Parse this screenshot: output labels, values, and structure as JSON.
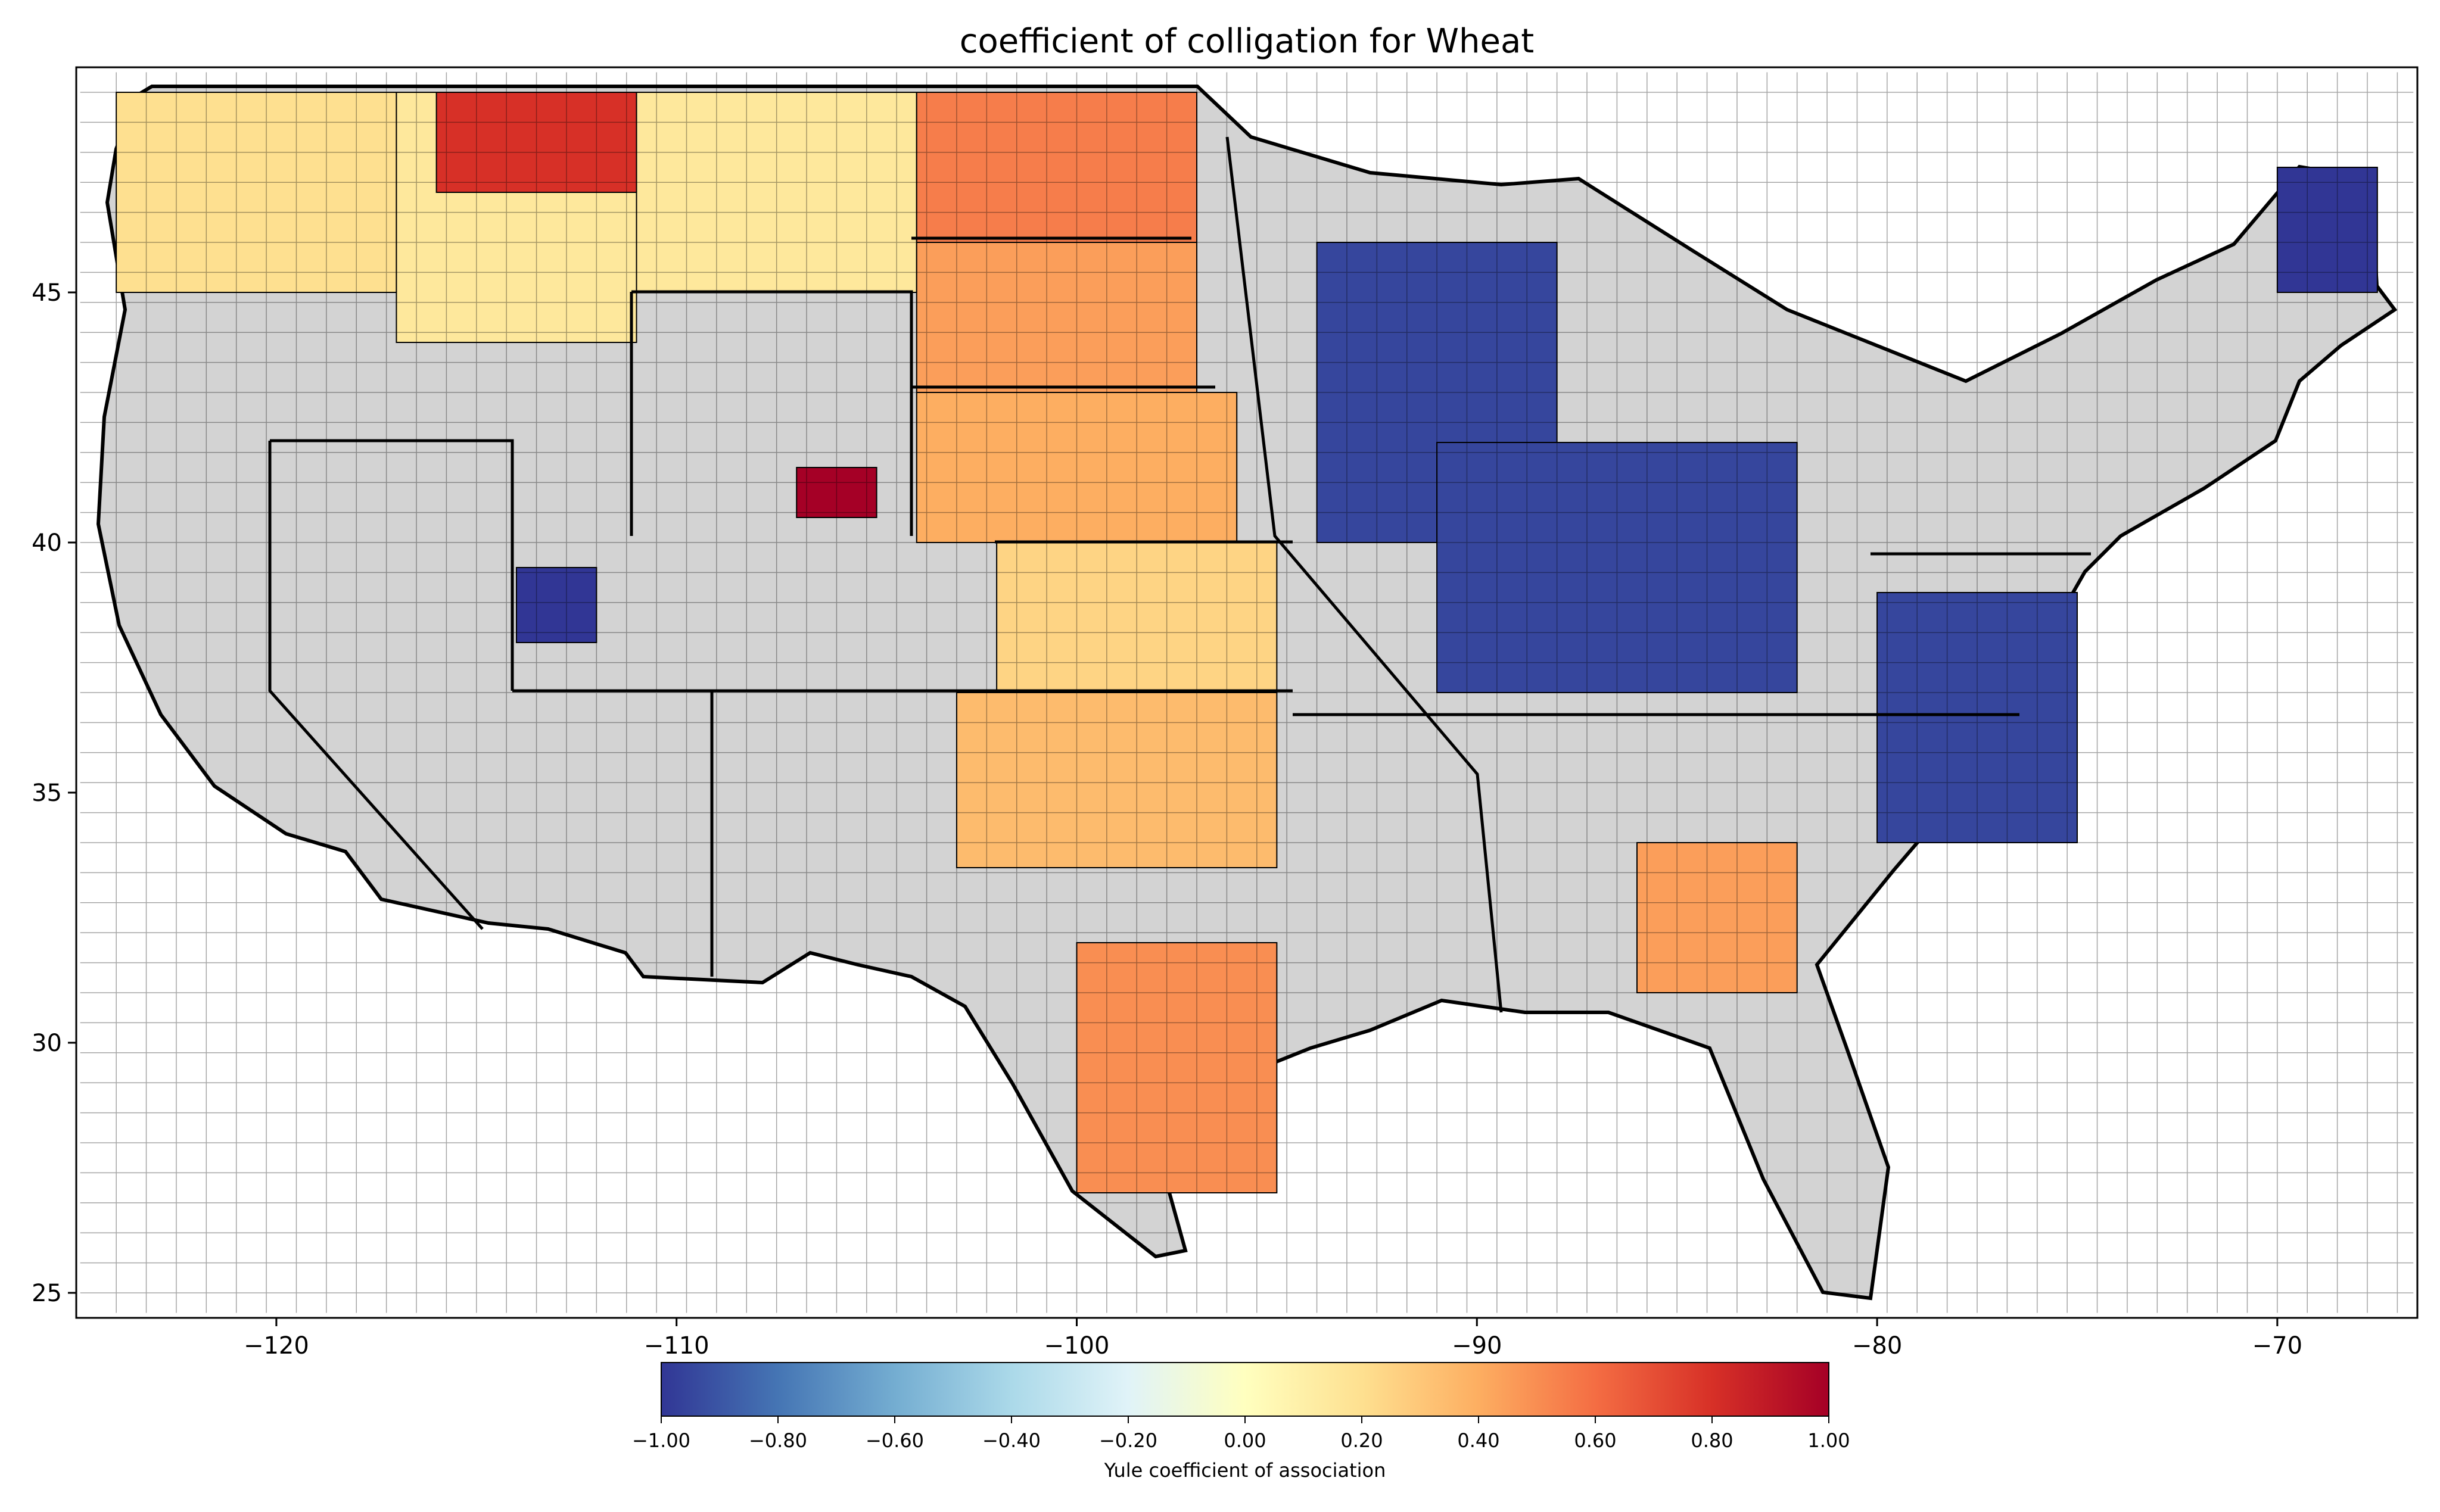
{
  "chart_data": {
    "type": "choropleth",
    "title": "coefficient of colligation for Wheat",
    "xlim": [
      -125,
      -66.5
    ],
    "ylim": [
      24.5,
      49.5
    ],
    "x_ticks": [
      -120,
      -110,
      -100,
      -90,
      -80,
      -70
    ],
    "x_tick_labels": [
      "−120",
      "−110",
      "−100",
      "−90",
      "−80",
      "−70"
    ],
    "y_ticks": [
      25,
      30,
      35,
      40,
      45
    ],
    "y_tick_labels": [
      "25",
      "30",
      "35",
      "40",
      "45"
    ],
    "colorbar": {
      "label": "Yule coefficient of association",
      "range": [
        -1.0,
        1.0
      ],
      "ticks": [
        -1.0,
        -0.8,
        -0.6,
        -0.4,
        -0.2,
        0.0,
        0.2,
        0.4,
        0.6,
        0.8,
        1.0
      ],
      "tick_labels": [
        "−1.00",
        "−0.80",
        "−0.60",
        "−0.40",
        "−0.20",
        "0.00",
        "0.20",
        "0.40",
        "0.60",
        "0.80",
        "1.00"
      ],
      "colormap": "RdYlBu_r",
      "stops": [
        "#313695",
        "#4575b4",
        "#74add1",
        "#abd9e9",
        "#e0f3f8",
        "#ffffbf",
        "#fee090",
        "#fdae61",
        "#f46d43",
        "#d73027",
        "#a50026"
      ]
    },
    "no_data_color": "#d3d3d3",
    "regions": [
      {
        "lon": [
          -124,
          -117
        ],
        "lat": [
          45,
          49
        ],
        "value": 0.2
      },
      {
        "lon": [
          -117,
          -111
        ],
        "lat": [
          44,
          49
        ],
        "value": 0.15
      },
      {
        "lon": [
          -116,
          -111
        ],
        "lat": [
          47,
          49
        ],
        "value": 0.8
      },
      {
        "lon": [
          -111,
          -104
        ],
        "lat": [
          45,
          49
        ],
        "value": 0.15
      },
      {
        "lon": [
          -104,
          -97
        ],
        "lat": [
          46,
          49
        ],
        "value": 0.55
      },
      {
        "lon": [
          -104,
          -97
        ],
        "lat": [
          43,
          46
        ],
        "value": 0.45
      },
      {
        "lon": [
          -104,
          -96
        ],
        "lat": [
          40,
          43
        ],
        "value": 0.4
      },
      {
        "lon": [
          -102,
          -95
        ],
        "lat": [
          37,
          40
        ],
        "value": 0.25
      },
      {
        "lon": [
          -103,
          -95
        ],
        "lat": [
          33.5,
          37
        ],
        "value": 0.35
      },
      {
        "lon": [
          -100,
          -95
        ],
        "lat": [
          27,
          32
        ],
        "value": 0.5
      },
      {
        "lon": [
          -94,
          -88
        ],
        "lat": [
          40,
          46
        ],
        "value": -0.95
      },
      {
        "lon": [
          -91,
          -82
        ],
        "lat": [
          37,
          42
        ],
        "value": -0.95
      },
      {
        "lon": [
          -80,
          -75
        ],
        "lat": [
          34,
          39
        ],
        "value": -0.95
      },
      {
        "lon": [
          -86,
          -82
        ],
        "lat": [
          31,
          34
        ],
        "value": 0.45
      },
      {
        "lon": [
          -70,
          -67.5
        ],
        "lat": [
          45,
          47.5
        ],
        "value": -1.0
      },
      {
        "lon": [
          -114,
          -112
        ],
        "lat": [
          38,
          39.5
        ],
        "value": -1.0
      },
      {
        "lon": [
          -107,
          -105
        ],
        "lat": [
          40.5,
          41.5
        ],
        "value": 1.0
      }
    ]
  }
}
